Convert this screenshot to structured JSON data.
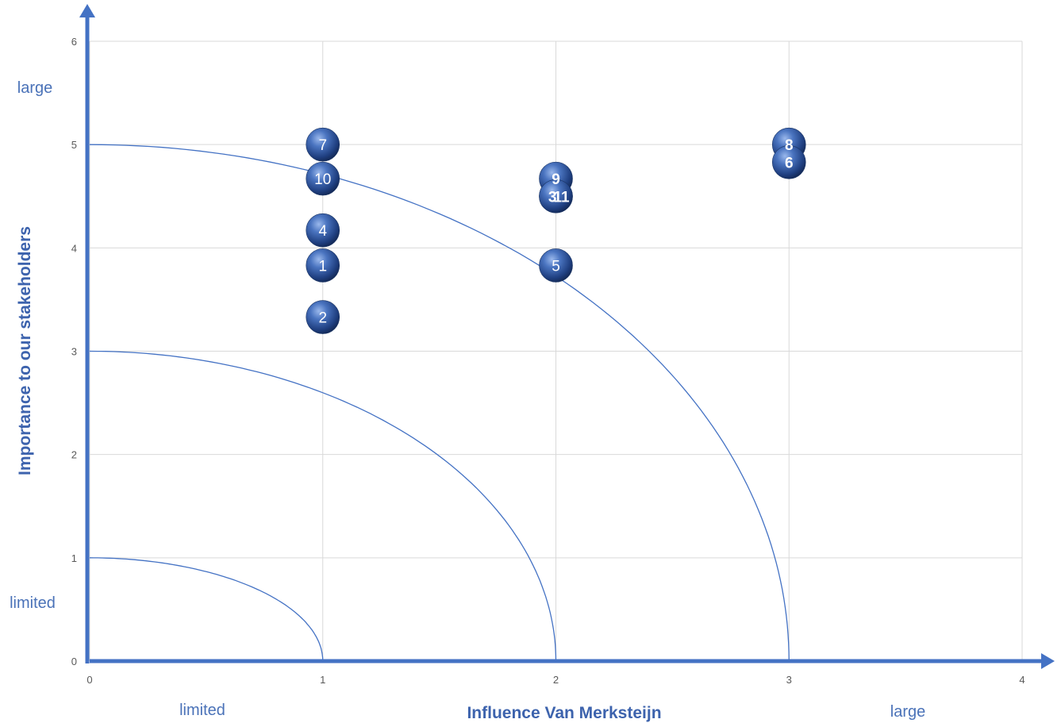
{
  "chart_data": {
    "type": "scatter",
    "title": "",
    "xlabel": "Influence Van Merksteijn",
    "ylabel": "Importance to our stakeholders",
    "xlim": [
      0,
      4
    ],
    "ylim": [
      0,
      6
    ],
    "x_ticks": [
      "0",
      "1",
      "2",
      "3",
      "4"
    ],
    "y_ticks": [
      "0",
      "1",
      "2",
      "3",
      "4",
      "5",
      "6"
    ],
    "grid": true,
    "x_scale_labels": {
      "low": "limited",
      "high": "large"
    },
    "y_scale_labels": {
      "low": "limited",
      "high": "large"
    },
    "threshold_arcs": [
      1,
      3,
      5
    ],
    "accent_color": "#4472c4",
    "points": [
      {
        "label": "7",
        "x": 1,
        "y": 5.0
      },
      {
        "label": "10",
        "x": 1,
        "y": 4.67
      },
      {
        "label": "4",
        "x": 1,
        "y": 4.17
      },
      {
        "label": "1",
        "x": 1,
        "y": 3.83
      },
      {
        "label": "2",
        "x": 1,
        "y": 3.33
      },
      {
        "label": "9",
        "x": 2,
        "y": 4.67
      },
      {
        "label": "3",
        "x": 2,
        "y": 4.5
      },
      {
        "label": "11",
        "x": 2,
        "y": 4.5
      },
      {
        "label": "5",
        "x": 2,
        "y": 3.83
      },
      {
        "label": "8",
        "x": 3,
        "y": 5.0
      },
      {
        "label": "6",
        "x": 3,
        "y": 4.83
      }
    ]
  }
}
